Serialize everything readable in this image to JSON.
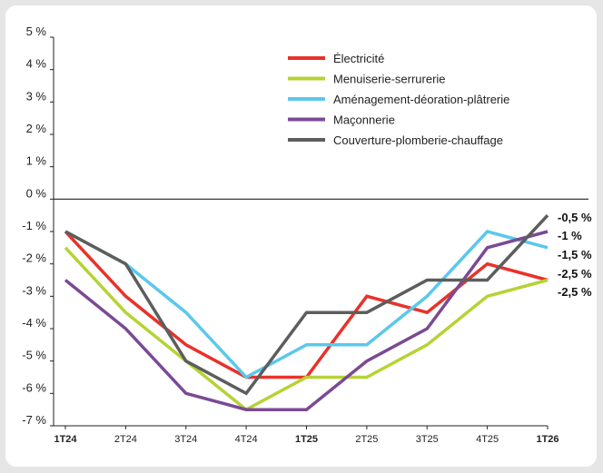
{
  "chart_data": {
    "type": "line",
    "title": "",
    "xlabel": "",
    "ylabel": "",
    "ylim": [
      -7,
      5
    ],
    "y_ticks": [
      {
        "value": 5,
        "label": "5 %"
      },
      {
        "value": 4,
        "label": "4 %"
      },
      {
        "value": 3,
        "label": "3 %"
      },
      {
        "value": 2,
        "label": "2 %"
      },
      {
        "value": 1,
        "label": "1 %"
      },
      {
        "value": 0,
        "label": "0 %"
      },
      {
        "value": -1,
        "label": "-1 %"
      },
      {
        "value": -2,
        "label": "-2 %"
      },
      {
        "value": -3,
        "label": "-3 %"
      },
      {
        "value": -4,
        "label": "-4 %"
      },
      {
        "value": -5,
        "label": "-5 %"
      },
      {
        "value": -6,
        "label": "-6 %"
      },
      {
        "value": -7,
        "label": "-7 %"
      }
    ],
    "categories": [
      "1T24",
      "2T24",
      "3T24",
      "4T24",
      "1T25",
      "2T25",
      "3T25",
      "4T25",
      "1T26"
    ],
    "bold_categories": [
      "1T24",
      "1T25",
      "1T26"
    ],
    "grid": false,
    "legend_position": "top-right",
    "series": [
      {
        "name": "Électricité",
        "color": "#e8322a",
        "values": [
          -1,
          -3,
          -4.5,
          -5.5,
          -5.5,
          -3,
          -3.5,
          -2,
          -2.5
        ]
      },
      {
        "name": "Menuiserie-serrurerie",
        "color": "#b5d334",
        "values": [
          -1.5,
          -3.5,
          -5,
          -6.5,
          -5.5,
          -5.5,
          -4.5,
          -3,
          -2.5
        ]
      },
      {
        "name": "Aménagement-déoration-plâtrerie",
        "color": "#5bc8ec",
        "values": [
          -1,
          -2,
          -3.5,
          -5.5,
          -4.5,
          -4.5,
          -3,
          -1,
          -1.5
        ]
      },
      {
        "name": "Maçonnerie",
        "color": "#7b4a93",
        "values": [
          -2.5,
          -4,
          -6,
          -6.5,
          -6.5,
          -5,
          -4,
          -1.5,
          -1
        ]
      },
      {
        "name": "Couverture-plomberie-chauffage",
        "color": "#5d5d5d",
        "values": [
          -1,
          -2,
          -5,
          -6,
          -3.5,
          -3.5,
          -2.5,
          -2.5,
          -0.5
        ]
      }
    ],
    "end_labels": [
      "-0,5 %",
      "-1 %",
      "-1,5 %",
      "-2,5 %",
      "-2,5 %"
    ]
  }
}
